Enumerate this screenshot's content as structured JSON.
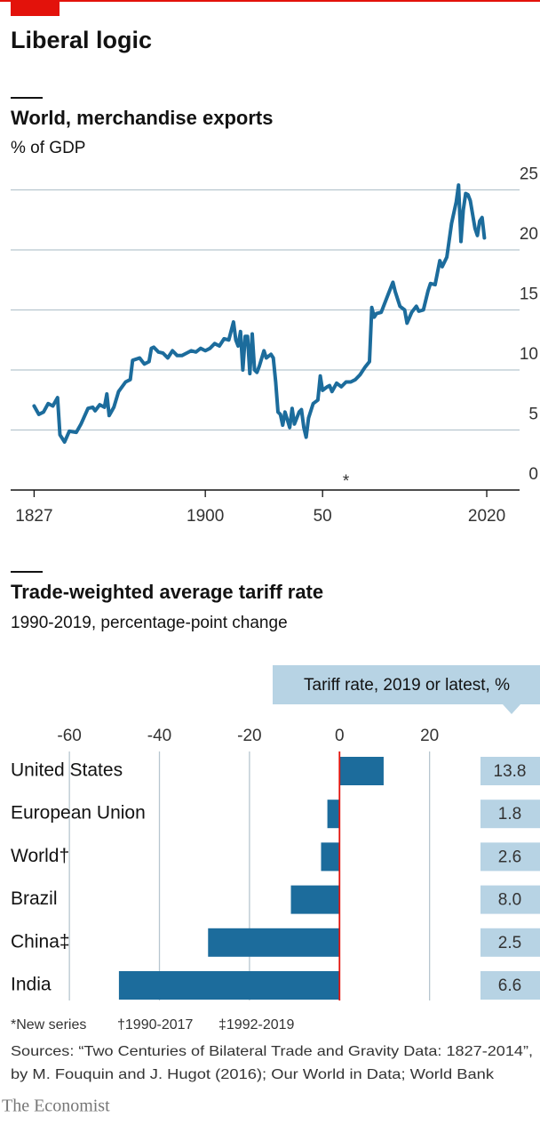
{
  "title": "Liberal logic",
  "chart_data": [
    {
      "type": "line",
      "title": "World, merchandise exports",
      "subtitle": "% of GDP",
      "color": "#1c6c9c",
      "x": [
        1827,
        1829,
        1831,
        1833,
        1835,
        1837,
        1838,
        1840,
        1842,
        1845,
        1847,
        1850,
        1852,
        1853,
        1855,
        1857,
        1858,
        1859,
        1861,
        1863,
        1866,
        1868,
        1869,
        1872,
        1874,
        1876,
        1877,
        1878,
        1880,
        1882,
        1884,
        1886,
        1888,
        1890,
        1892,
        1894,
        1896,
        1898,
        1900,
        1902,
        1904,
        1906,
        1908,
        1910,
        1912,
        1913,
        1914,
        1915,
        1916,
        1917,
        1918,
        1919,
        1920,
        1921,
        1922,
        1923,
        1925,
        1926,
        1928,
        1929,
        1930,
        1931,
        1932,
        1933,
        1934,
        1936,
        1937,
        1938,
        1940,
        1941,
        1942,
        1943,
        1944,
        1946,
        1948,
        1949,
        1950,
        1952,
        1953,
        1954,
        1956,
        1958,
        1960,
        1962,
        1964,
        1966,
        1968,
        1970,
        1971,
        1972,
        1973,
        1975,
        1978,
        1980,
        1981,
        1983,
        1985,
        1986,
        1988,
        1990,
        1991,
        1993,
        1995,
        1996,
        1998,
        2000,
        2001,
        2003,
        2005,
        2007,
        2008,
        2009,
        2010,
        2011,
        2012,
        2013,
        2015,
        2016,
        2017,
        2018,
        2019
      ],
      "values": [
        7.0,
        6.3,
        6.5,
        7.2,
        7.0,
        7.7,
        4.6,
        4.0,
        4.9,
        4.8,
        5.5,
        6.8,
        6.9,
        6.6,
        7.1,
        6.9,
        8.0,
        6.2,
        6.9,
        8.2,
        9.0,
        9.2,
        10.8,
        11.0,
        10.5,
        10.7,
        11.8,
        11.9,
        11.5,
        11.4,
        11.0,
        11.6,
        11.2,
        11.2,
        11.4,
        11.6,
        11.5,
        11.8,
        11.6,
        11.8,
        12.2,
        12.0,
        12.6,
        12.5,
        14.0,
        12.5,
        12.0,
        13.2,
        10.0,
        12.8,
        12.8,
        9.7,
        13.0,
        10.0,
        9.8,
        10.3,
        11.6,
        11.0,
        11.3,
        11.0,
        9.0,
        6.5,
        6.3,
        5.4,
        6.5,
        5.2,
        6.8,
        5.5,
        6.5,
        6.7,
        5.2,
        4.4,
        6.0,
        7.2,
        7.5,
        9.5,
        8.3,
        8.6,
        8.7,
        8.2,
        8.9,
        8.6,
        9.0,
        9.0,
        9.2,
        9.6,
        10.2,
        10.7,
        15.2,
        14.4,
        14.7,
        14.8,
        16.3,
        17.3,
        16.5,
        15.3,
        15.0,
        13.9,
        14.8,
        15.3,
        14.9,
        15.0,
        16.6,
        17.2,
        17.1,
        19.1,
        18.6,
        19.4,
        22.2,
        24.0,
        25.4,
        20.7,
        23.3,
        24.7,
        24.6,
        24.1,
        21.8,
        21.2,
        22.4,
        22.7,
        21.0
      ],
      "xlim": [
        1817,
        2034
      ],
      "xticks": [
        1827,
        1900,
        {
          "value": 1950,
          "label": "50"
        },
        2020
      ],
      "ylim": [
        0,
        26
      ],
      "yticks": [
        0,
        5,
        10,
        15,
        20,
        25
      ],
      "grid": true,
      "annotations": [
        {
          "text": "*",
          "x": 1960
        }
      ]
    },
    {
      "type": "barh",
      "title": "Trade-weighted average tariff rate",
      "subtitle": "1990-2019, percentage-point change",
      "color": "#1c6c9c",
      "zero_color": "#e3120b",
      "categories": [
        "United States",
        "European Union",
        "World†",
        "Brazil",
        "China‡",
        "India"
      ],
      "values": [
        9.8,
        -2.7,
        -4.1,
        -10.8,
        -29.2,
        -49.0
      ],
      "xlim": [
        -62,
        25
      ],
      "xticks": [
        -60,
        -40,
        -20,
        0,
        20
      ],
      "grid": true,
      "table": {
        "title": "Tariff rate, 2019 or latest, %",
        "color": "#b7d3e4",
        "values": [
          13.8,
          1.8,
          2.6,
          8.0,
          2.5,
          6.6
        ],
        "value_labels": [
          "13.8",
          "1.8",
          "2.6",
          "8.0",
          "2.5",
          "6.6"
        ]
      }
    }
  ],
  "footnotes": [
    "*New series",
    "†1990-2017",
    "‡1992-2019"
  ],
  "source_lines": [
    "Sources: “Two Centuries of Bilateral Trade and Gravity Data: 1827-2014”,",
    "by M. Fouquin and J. Hugot (2016); Our World in Data; World Bank"
  ],
  "brand": "The Economist"
}
